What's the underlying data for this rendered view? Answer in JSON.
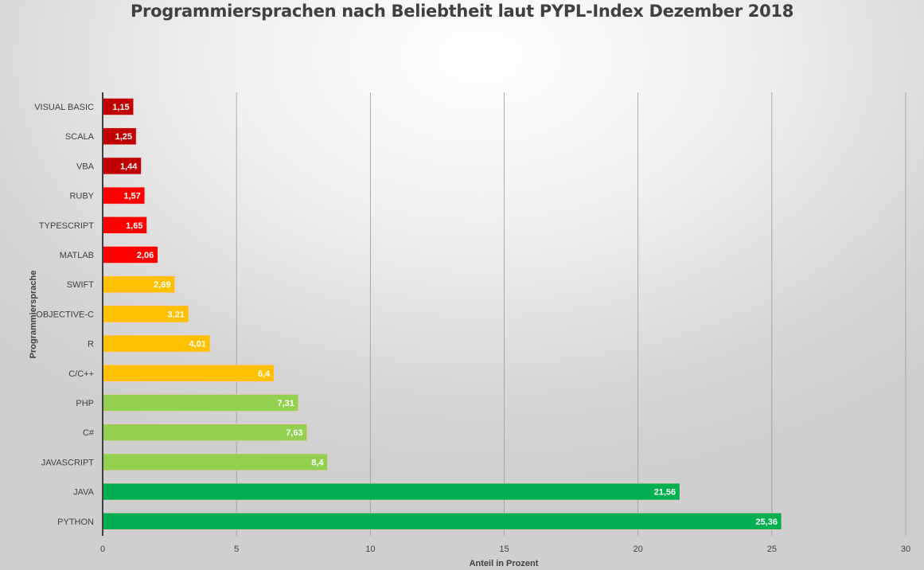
{
  "chart_data": {
    "type": "bar",
    "orientation": "horizontal",
    "title": "Programmiersprachen nach Beliebtheit laut PYPL-Index Dezember 2018",
    "xlabel": "Anteil in Prozent",
    "ylabel": "Programmiersprache",
    "xlim": [
      0,
      30
    ],
    "xticks": [
      "0",
      "5",
      "10",
      "15",
      "20",
      "25",
      "30"
    ],
    "grid": "vertical",
    "legend": "none",
    "categories": [
      "VISUAL BASIC",
      "SCALA",
      "VBA",
      "RUBY",
      "TYPESCRIPT",
      "MATLAB",
      "SWIFT",
      "OBJECTIVE-C",
      "R",
      "C/C++",
      "PHP",
      "C#",
      "JAVASCRIPT",
      "JAVA",
      "PYTHON"
    ],
    "values": [
      1.15,
      1.25,
      1.44,
      1.57,
      1.65,
      2.06,
      2.69,
      3.21,
      4.01,
      6.4,
      7.31,
      7.63,
      8.4,
      21.56,
      25.36
    ],
    "data_labels": [
      "1,15",
      "1,25",
      "1,44",
      "1,57",
      "1,65",
      "2,06",
      "2,69",
      "3,21",
      "4,01",
      "6,4",
      "7,31",
      "7,63",
      "8,4",
      "21,56",
      "25,36"
    ],
    "colors": [
      "#C00000",
      "#C00000",
      "#C00000",
      "#FF0000",
      "#FF0000",
      "#FF0000",
      "#FFC000",
      "#FFC000",
      "#FFC000",
      "#FFC000",
      "#92D050",
      "#92D050",
      "#92D050",
      "#00B050",
      "#00B050"
    ]
  }
}
